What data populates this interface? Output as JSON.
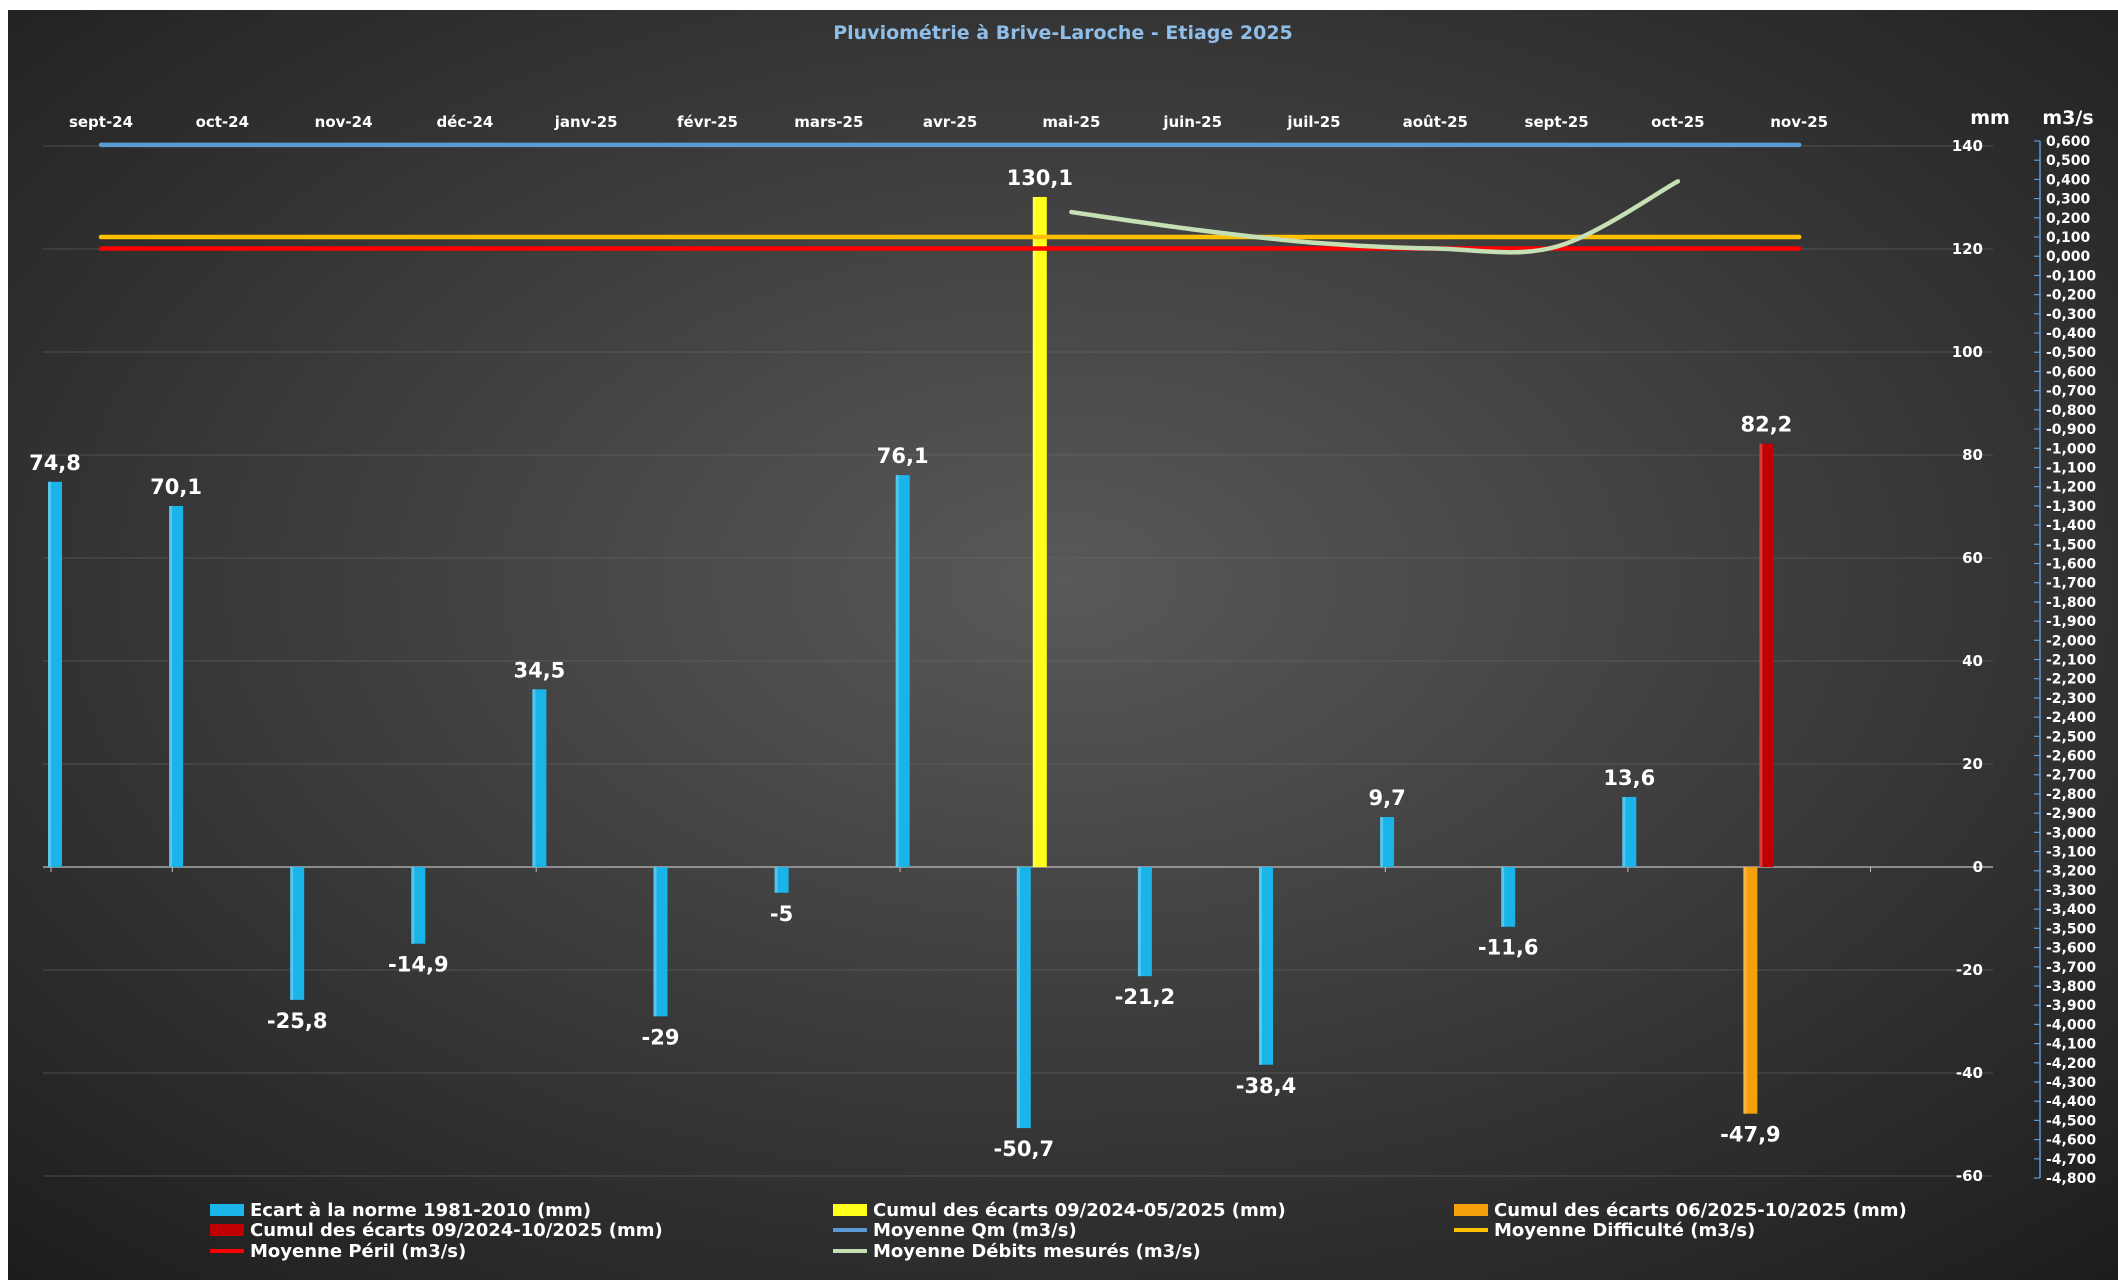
{
  "chart_data": {
    "type": "bar",
    "title": "Pluviométrie à Brive-Laroche - Etiage 2025",
    "categories": [
      "sept-24",
      "oct-24",
      "nov-24",
      "déc-24",
      "janv-25",
      "févr-25",
      "mars-25",
      "avr-25",
      "mai-25",
      "juin-25",
      "juil-25",
      "août-25",
      "sept-25",
      "oct-25",
      "nov-25"
    ],
    "left_axis_unit": "mm",
    "right_axis_unit": "m3/s",
    "ylim": [
      -60,
      140
    ],
    "y_ticks": [
      140,
      120,
      100,
      80,
      60,
      40,
      20,
      0,
      -20,
      -40,
      -60
    ],
    "y2lim": [
      -4.8,
      0.6
    ],
    "y2_ticks": [
      "0,600",
      "0,500",
      "0,400",
      "0,300",
      "0,200",
      "0,100",
      "0,000",
      "-0,100",
      "-0,200",
      "-0,300",
      "-0,400",
      "-0,500",
      "-0,600",
      "-0,700",
      "-0,800",
      "-0,900",
      "-1,000",
      "-1,100",
      "-1,200",
      "-1,300",
      "-1,400",
      "-1,500",
      "-1,600",
      "-1,700",
      "-1,800",
      "-1,900",
      "-2,000",
      "-2,100",
      "-2,200",
      "-2,300",
      "-2,400",
      "-2,500",
      "-2,600",
      "-2,700",
      "-2,800",
      "-2,900",
      "-3,000",
      "-3,100",
      "-3,200",
      "-3,300",
      "-3,400",
      "-3,500",
      "-3,600",
      "-3,700",
      "-3,800",
      "-3,900",
      "-4,000",
      "-4,100",
      "-4,200",
      "-4,300",
      "-4,400",
      "-4,500",
      "-4,600",
      "-4,700",
      "-4,800"
    ],
    "grid": true,
    "legend_position": "bottom",
    "series": [
      {
        "name": "Ecart à la norme 1981-2010 (mm)",
        "kind": "bar",
        "color": "#1ab4e8",
        "values": [
          74.8,
          70.1,
          -25.8,
          -14.9,
          34.5,
          -29,
          -5,
          76.1,
          -50.7,
          -21.2,
          -38.4,
          9.7,
          -11.6,
          13.6,
          null
        ],
        "labels": [
          "74,8",
          "70,1",
          "-25,8",
          "-14,9",
          "34,5",
          "-29",
          "-5",
          "76,1",
          "-50,7",
          "-21,2",
          "-38,4",
          "9,7",
          "-11,6",
          "13,6",
          ""
        ]
      },
      {
        "name": "Cumul des écarts 09/2024-05/2025 (mm)",
        "kind": "bar",
        "color": "#ffff1a",
        "values": [
          null,
          null,
          null,
          null,
          null,
          null,
          null,
          null,
          130.1,
          null,
          null,
          null,
          null,
          null,
          null
        ],
        "labels": [
          "",
          "",
          "",
          "",
          "",
          "",
          "",
          "",
          "130,1",
          "",
          "",
          "",
          "",
          "",
          ""
        ]
      },
      {
        "name": "Cumul des écarts 06/2025-10/2025 (mm)",
        "kind": "bar",
        "color": "#f5a00c",
        "values": [
          null,
          null,
          null,
          null,
          null,
          null,
          null,
          null,
          null,
          null,
          null,
          null,
          null,
          null,
          -47.9
        ],
        "labels": [
          "",
          "",
          "",
          "",
          "",
          "",
          "",
          "",
          "",
          "",
          "",
          "",
          "",
          "",
          "-47,9"
        ]
      },
      {
        "name": "Cumul des écarts 09/2024-10/2025 (mm)",
        "kind": "bar",
        "color": "#c00000",
        "values": [
          null,
          null,
          null,
          null,
          null,
          null,
          null,
          null,
          null,
          null,
          null,
          null,
          null,
          null,
          82.2
        ],
        "labels": [
          "",
          "",
          "",
          "",
          "",
          "",
          "",
          "",
          "",
          "",
          "",
          "",
          "",
          "",
          "82,2"
        ]
      },
      {
        "name": "Moyenne Qm (m3/s)",
        "kind": "line",
        "axis": "right",
        "color": "#5b9bd5",
        "values": [
          0.58,
          0.58,
          0.58,
          0.58,
          0.58,
          0.58,
          0.58,
          0.58,
          0.58,
          0.58,
          0.58,
          0.58,
          0.58,
          0.58,
          0.58
        ]
      },
      {
        "name": "Moyenne Difficulté (m3/s)",
        "kind": "line",
        "axis": "right",
        "color": "#ffc000",
        "values": [
          0.1,
          0.1,
          0.1,
          0.1,
          0.1,
          0.1,
          0.1,
          0.1,
          0.1,
          0.1,
          0.1,
          0.1,
          0.1,
          0.1,
          0.1
        ]
      },
      {
        "name": "Moyenne Péril (m3/s)",
        "kind": "line",
        "axis": "right",
        "color": "#ff0000",
        "values": [
          0.04,
          0.04,
          0.04,
          0.04,
          0.04,
          0.04,
          0.04,
          0.04,
          0.04,
          0.04,
          0.04,
          0.04,
          0.04,
          0.04,
          0.04
        ]
      },
      {
        "name": "Moyenne Débits mesurés (m3/s)",
        "kind": "line",
        "axis": "right",
        "color": "#c5e0b4",
        "smooth": true,
        "values": [
          null,
          null,
          null,
          null,
          null,
          null,
          null,
          null,
          0.23,
          0.14,
          0.07,
          0.04,
          0.05,
          0.39,
          null
        ]
      }
    ]
  }
}
